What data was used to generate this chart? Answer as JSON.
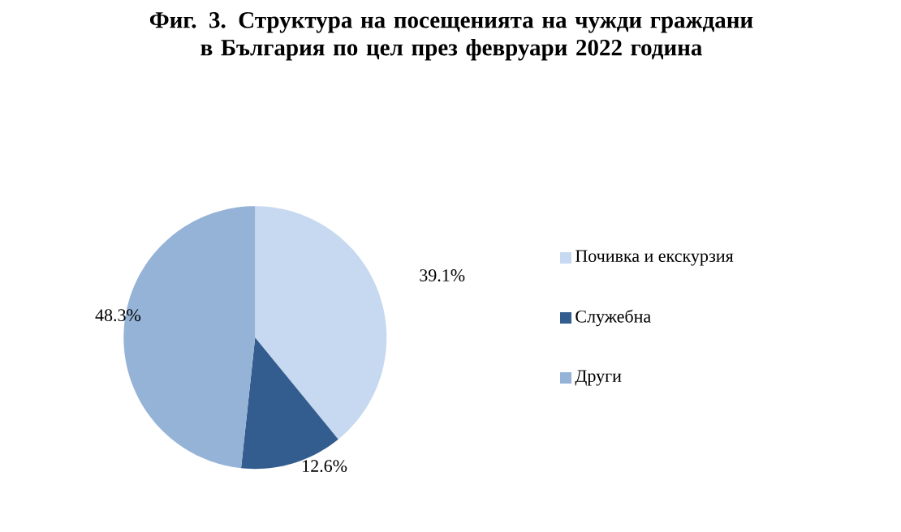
{
  "chart_data": {
    "type": "pie",
    "title": "Фиг. 3. Структура на посещенията на чужди граждани в България по цел през февруари 2022 година",
    "categories": [
      "Почивка и екскурзия",
      "Служебна",
      "Други"
    ],
    "values": [
      39.1,
      12.6,
      48.3
    ],
    "colors": [
      "#c6d9f0",
      "#335d8f",
      "#95b3d7"
    ],
    "value_labels": [
      "39.1%",
      "12.6%",
      "48.3%"
    ],
    "legend": "right"
  }
}
